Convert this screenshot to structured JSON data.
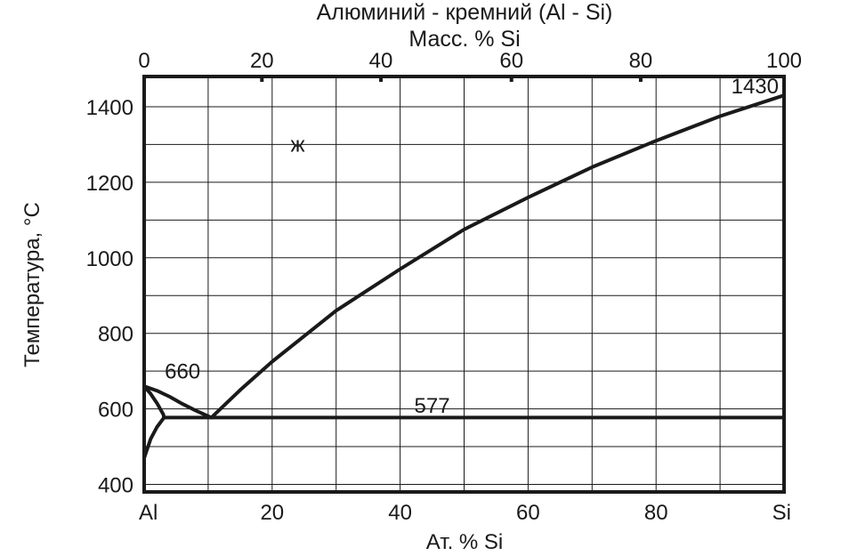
{
  "chart_data": {
    "type": "line",
    "title": "Алюминий - кремний  (Al - Si)",
    "top_axis_label": "Масс. % Si",
    "top_ticks": [
      "0",
      "20",
      "40",
      "60",
      "80",
      "100"
    ],
    "top_tick_at_pct": [
      0,
      18.4,
      37.0,
      57.4,
      77.6,
      100
    ],
    "xlabel": "Ат. % Si",
    "x_ticks": [
      "Al",
      "20",
      "40",
      "60",
      "80",
      "Si"
    ],
    "xlim": [
      0,
      100
    ],
    "ylabel": "Температура, °C",
    "y_ticks": [
      400,
      600,
      800,
      1000,
      1200,
      1400
    ],
    "ylim": [
      380,
      1480
    ],
    "grid": true,
    "series": [
      {
        "points": [
          [
            0,
            660
          ],
          [
            2,
            648
          ],
          [
            4,
            632
          ],
          [
            6,
            613
          ],
          [
            8,
            596
          ],
          [
            10.5,
            577
          ]
        ]
      },
      {
        "points": [
          [
            10.5,
            577
          ],
          [
            15,
            650
          ],
          [
            20,
            725
          ],
          [
            30,
            860
          ],
          [
            40,
            970
          ],
          [
            50,
            1075
          ],
          [
            60,
            1160
          ],
          [
            70,
            1240
          ],
          [
            80,
            1310
          ],
          [
            90,
            1375
          ],
          [
            100,
            1430
          ]
        ]
      },
      {
        "points": [
          [
            0,
            660
          ],
          [
            1,
            640
          ],
          [
            2,
            615
          ],
          [
            3,
            585
          ],
          [
            3.1,
            577
          ]
        ]
      },
      {
        "points": [
          [
            0,
            470
          ],
          [
            1,
            520
          ],
          [
            2,
            552
          ],
          [
            3.1,
            577
          ]
        ]
      },
      {
        "points": [
          [
            3.1,
            577
          ],
          [
            100,
            577
          ]
        ]
      }
    ],
    "annotations": [
      {
        "text": "1430",
        "x": 100,
        "y": 1430
      },
      {
        "text": "ж",
        "x": 24,
        "y": 1300
      },
      {
        "text": "660",
        "x": 6,
        "y": 680
      },
      {
        "text": "577",
        "x": 45,
        "y": 590
      }
    ]
  }
}
